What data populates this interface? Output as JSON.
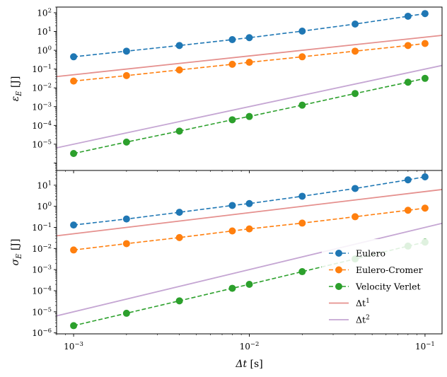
{
  "chart_data": [
    {
      "type": "line",
      "xscale": "log",
      "yscale": "log",
      "xlim": [
        0.0008,
        0.125
      ],
      "ylim": [
        4e-07,
        200
      ],
      "ylabel": "ε_E [J]",
      "xlabel": "",
      "grid": false,
      "x": [
        0.001,
        0.002,
        0.004,
        0.008,
        0.01,
        0.02,
        0.04,
        0.08,
        0.1
      ],
      "yticks": [
        {
          "value": 1e-05,
          "mantissa": "10",
          "exp": "−5"
        },
        {
          "value": 0.0001,
          "mantissa": "10",
          "exp": "−4"
        },
        {
          "value": 0.001,
          "mantissa": "10",
          "exp": "−3"
        },
        {
          "value": 0.01,
          "mantissa": "10",
          "exp": "−2"
        },
        {
          "value": 0.1,
          "mantissa": "10",
          "exp": "−1"
        },
        {
          "value": 1,
          "mantissa": "10",
          "exp": "0"
        },
        {
          "value": 10,
          "mantissa": "10",
          "exp": "1"
        },
        {
          "value": 100,
          "mantissa": "10",
          "exp": "2"
        }
      ],
      "series": [
        {
          "name": "Eulero",
          "color": "#1f77b4",
          "style": "dashed-marker",
          "y": [
            0.45,
            0.9,
            1.8,
            3.7,
            4.7,
            10.5,
            25,
            65,
            90
          ]
        },
        {
          "name": "Eulero-Cromer",
          "color": "#ff7f0e",
          "style": "dashed-marker",
          "y": [
            0.023,
            0.045,
            0.09,
            0.18,
            0.23,
            0.45,
            0.9,
            1.8,
            2.3
          ]
        },
        {
          "name": "Velocity Verlet",
          "color": "#2ca02c",
          "style": "dashed-marker",
          "y": [
            3.2e-06,
            1.3e-05,
            5e-05,
            0.0002,
            0.0003,
            0.0012,
            0.005,
            0.02,
            0.032
          ]
        },
        {
          "name": "Δt¹",
          "color": "#e5908e",
          "style": "line",
          "ref": {
            "x0": 0.0008,
            "y0": 0.04,
            "x1": 0.125,
            "y1": 6.25
          }
        },
        {
          "name": "Δt²",
          "color": "#c5a6d3",
          "style": "line",
          "ref": {
            "x0": 0.0008,
            "y0": 6.4e-06,
            "x1": 0.125,
            "y1": 0.156
          }
        }
      ]
    },
    {
      "type": "line",
      "xscale": "log",
      "yscale": "log",
      "xlim": [
        0.0008,
        0.125
      ],
      "ylim": [
        9e-07,
        50
      ],
      "ylabel": "σ_E [J]",
      "xlabel": "Δt [s]",
      "grid": false,
      "legend": "lower-right",
      "x": [
        0.001,
        0.002,
        0.004,
        0.008,
        0.01,
        0.02,
        0.04,
        0.08,
        0.1
      ],
      "xticks": [
        {
          "value": 0.001,
          "mantissa": "10",
          "exp": "−3"
        },
        {
          "value": 0.01,
          "mantissa": "10",
          "exp": "−2"
        },
        {
          "value": 0.1,
          "mantissa": "10",
          "exp": "−1"
        }
      ],
      "yticks": [
        {
          "value": 1e-06,
          "mantissa": "10",
          "exp": "−6"
        },
        {
          "value": 1e-05,
          "mantissa": "10",
          "exp": "−5"
        },
        {
          "value": 0.0001,
          "mantissa": "10",
          "exp": "−4"
        },
        {
          "value": 0.001,
          "mantissa": "10",
          "exp": "−3"
        },
        {
          "value": 0.01,
          "mantissa": "10",
          "exp": "−2"
        },
        {
          "value": 0.1,
          "mantissa": "10",
          "exp": "−1"
        },
        {
          "value": 1,
          "mantissa": "10",
          "exp": "0"
        },
        {
          "value": 10,
          "mantissa": "10",
          "exp": "1"
        }
      ],
      "series": [
        {
          "name": "Eulero",
          "color": "#1f77b4",
          "style": "dashed-marker",
          "y": [
            0.13,
            0.25,
            0.52,
            1.1,
            1.35,
            3.0,
            7.0,
            18,
            25
          ]
        },
        {
          "name": "Eulero-Cromer",
          "color": "#ff7f0e",
          "style": "dashed-marker",
          "y": [
            0.0085,
            0.017,
            0.033,
            0.068,
            0.085,
            0.16,
            0.32,
            0.65,
            0.82
          ]
        },
        {
          "name": "Velocity Verlet",
          "color": "#2ca02c",
          "style": "dashed-marker",
          "y": [
            2.2e-06,
            8.5e-06,
            3.3e-05,
            0.00013,
            0.0002,
            0.0008,
            0.0032,
            0.013,
            0.02
          ]
        },
        {
          "name": "Δt¹",
          "color": "#e5908e",
          "style": "line",
          "ref": {
            "x0": 0.0008,
            "y0": 0.04,
            "x1": 0.125,
            "y1": 6.25
          }
        },
        {
          "name": "Δt²",
          "color": "#c5a6d3",
          "style": "line",
          "ref": {
            "x0": 0.0008,
            "y0": 6.4e-06,
            "x1": 0.125,
            "y1": 0.156
          }
        }
      ]
    }
  ],
  "legend": {
    "entries": [
      {
        "label": "Eulero",
        "base": "Eulero",
        "sup": "",
        "color": "#1f77b4",
        "style": "dashed-marker"
      },
      {
        "label": "Eulero-Cromer",
        "base": "Eulero-Cromer",
        "sup": "",
        "color": "#ff7f0e",
        "style": "dashed-marker"
      },
      {
        "label": "Velocity Verlet",
        "base": "Velocity Verlet",
        "sup": "",
        "color": "#2ca02c",
        "style": "dashed-marker"
      },
      {
        "label": "Δt¹",
        "base": "Δt",
        "sup": "1",
        "color": "#e5908e",
        "style": "line"
      },
      {
        "label": "Δt²",
        "base": "Δt",
        "sup": "2",
        "color": "#c5a6d3",
        "style": "line"
      }
    ]
  }
}
